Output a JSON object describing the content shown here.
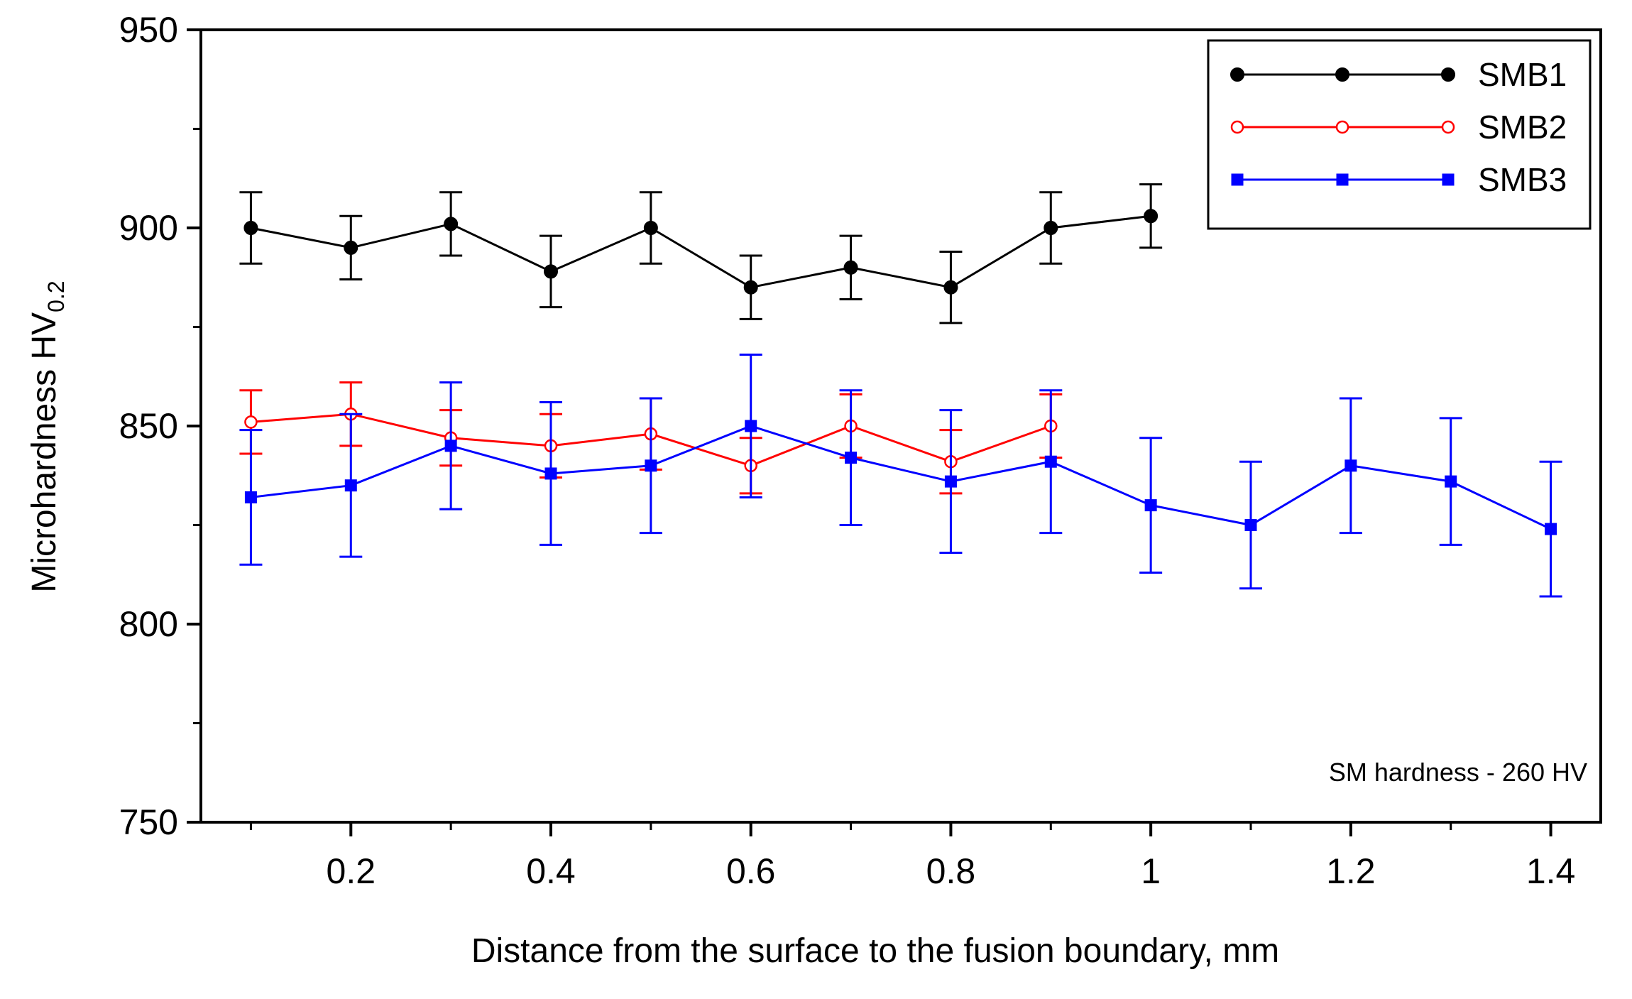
{
  "chart_data": {
    "type": "line",
    "title": "",
    "xlabel": "Distance from the surface to the fusion boundary, mm",
    "ylabel": {
      "main": "Microhardness HV",
      "sub": "0.2"
    },
    "xlim": [
      0.05,
      1.45
    ],
    "ylim": [
      750,
      950
    ],
    "xticks": [
      0.2,
      0.4,
      0.6,
      0.8,
      1.0,
      1.2,
      1.4
    ],
    "xtick_labels": [
      "0.2",
      "0.4",
      "0.6",
      "0.8",
      "1",
      "1.2",
      "1.4"
    ],
    "xminor_ticks": [
      0.1,
      0.3,
      0.5,
      0.7,
      0.9,
      1.1,
      1.3
    ],
    "yticks": [
      750,
      800,
      850,
      900,
      950
    ],
    "ytick_labels": [
      "750",
      "800",
      "850",
      "900",
      "950"
    ],
    "yminor_ticks": [
      775,
      825,
      875,
      925
    ],
    "grid": false,
    "legend_position": "top-right",
    "annotation": "SM hardness - 260 HV",
    "series": [
      {
        "name": "SMB1",
        "color": "#000000",
        "marker": "filled-circle",
        "x": [
          0.1,
          0.2,
          0.3,
          0.4,
          0.5,
          0.6,
          0.7,
          0.8,
          0.9,
          1.0
        ],
        "y": [
          900,
          895,
          901,
          889,
          900,
          885,
          890,
          885,
          900,
          903
        ],
        "err": [
          9,
          8,
          8,
          9,
          9,
          8,
          8,
          9,
          9,
          8
        ]
      },
      {
        "name": "SMB2",
        "color": "#ff0000",
        "marker": "open-circle",
        "x": [
          0.1,
          0.2,
          0.3,
          0.4,
          0.5,
          0.6,
          0.7,
          0.8,
          0.9
        ],
        "y": [
          851,
          853,
          847,
          845,
          848,
          840,
          850,
          841,
          850
        ],
        "err": [
          8,
          8,
          7,
          8,
          9,
          7,
          8,
          8,
          8
        ]
      },
      {
        "name": "SMB3",
        "color": "#0000ff",
        "marker": "filled-square",
        "x": [
          0.1,
          0.2,
          0.3,
          0.4,
          0.5,
          0.6,
          0.7,
          0.8,
          0.9,
          1.0,
          1.1,
          1.2,
          1.3,
          1.4
        ],
        "y": [
          832,
          835,
          845,
          838,
          840,
          850,
          842,
          836,
          841,
          830,
          825,
          840,
          836,
          824
        ],
        "err": [
          17,
          18,
          16,
          18,
          17,
          18,
          17,
          18,
          18,
          17,
          16,
          17,
          16,
          17
        ]
      }
    ]
  }
}
